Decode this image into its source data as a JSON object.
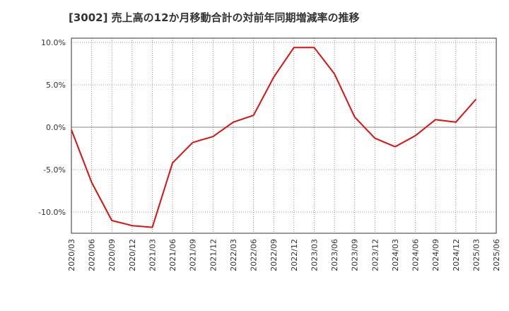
{
  "chart_data": {
    "type": "line",
    "title": "[3002]  売上高の12か月移動合計の対前年同期増減率の推移",
    "xlabel": "",
    "ylabel": "",
    "x": [
      "2020/03",
      "2020/06",
      "2020/09",
      "2020/12",
      "2021/03",
      "2021/06",
      "2021/09",
      "2021/12",
      "2022/03",
      "2022/06",
      "2022/09",
      "2022/12",
      "2023/03",
      "2023/06",
      "2023/09",
      "2023/12",
      "2024/03",
      "2024/06",
      "2024/09",
      "2024/12",
      "2025/03",
      "2025/06"
    ],
    "series": [
      {
        "values": [
          -0.3,
          -6.5,
          -11.0,
          -11.6,
          -11.8,
          -4.2,
          -1.8,
          -1.1,
          0.6,
          1.4,
          5.9,
          9.4,
          9.4,
          6.3,
          1.2,
          -1.3,
          -2.3,
          -1.0,
          0.9,
          0.6,
          3.3,
          null
        ],
        "color": "#dd1111"
      }
    ],
    "y_ticks": [
      "10.0%",
      "5.0%",
      "0.0%",
      "-5.0%",
      "-10.0%"
    ],
    "y_tick_values": [
      10,
      5,
      0,
      -5,
      -10
    ],
    "ylim": [
      -12.5,
      10.5
    ],
    "grid": true
  }
}
